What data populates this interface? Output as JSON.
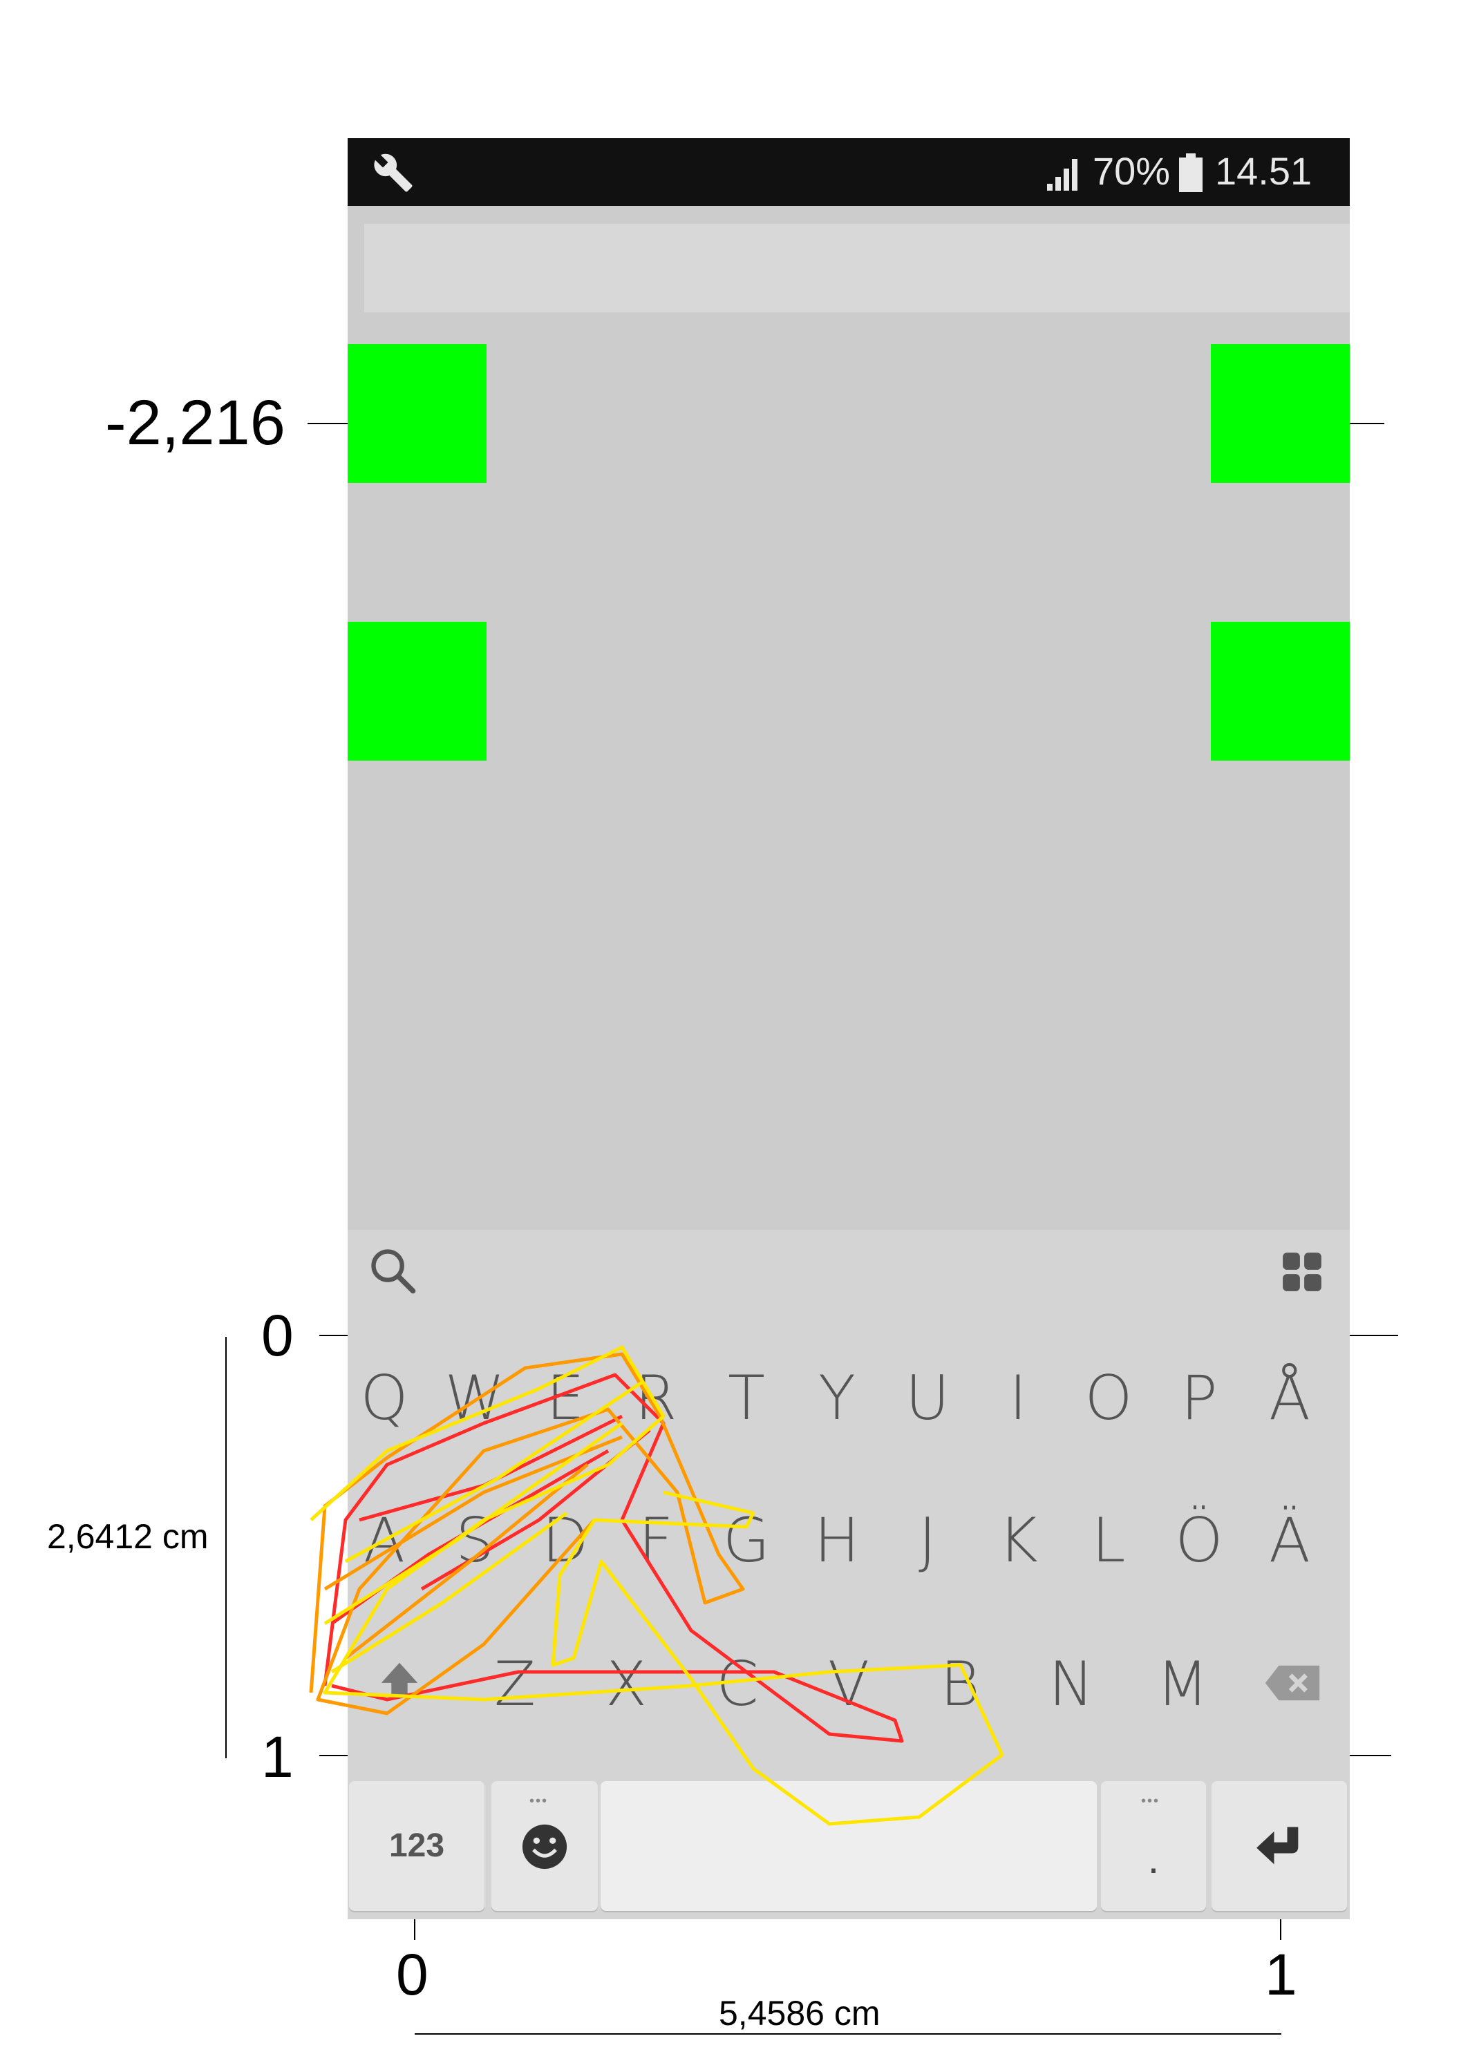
{
  "status_bar": {
    "signal_percent": "70%",
    "time": "14.51",
    "left_icon": "wrench-icon"
  },
  "keyboard": {
    "row1": [
      "Q",
      "W",
      "E",
      "R",
      "T",
      "Y",
      "U",
      "I",
      "O",
      "P",
      "Å"
    ],
    "row2": [
      "A",
      "S",
      "D",
      "F",
      "G",
      "H",
      "J",
      "K",
      "L",
      "Ö",
      "Ä"
    ],
    "row3": [
      "Z",
      "X",
      "C",
      "V",
      "B",
      "N",
      "M"
    ],
    "numbers_key": "123",
    "period_key": ".",
    "toolbar_icons": [
      "search-icon",
      "apps-grid-icon"
    ]
  },
  "annotations": {
    "top_offset": "-2,216",
    "y_zero": "0",
    "y_one": "1",
    "height_label": "2,6412 cm",
    "x_zero": "0",
    "x_one": "1",
    "width_label": "5,4586 cm"
  },
  "colors": {
    "target": "#00ff00",
    "trace_colors": [
      "#ff2a2a",
      "#ff9900",
      "#ffe600"
    ]
  }
}
